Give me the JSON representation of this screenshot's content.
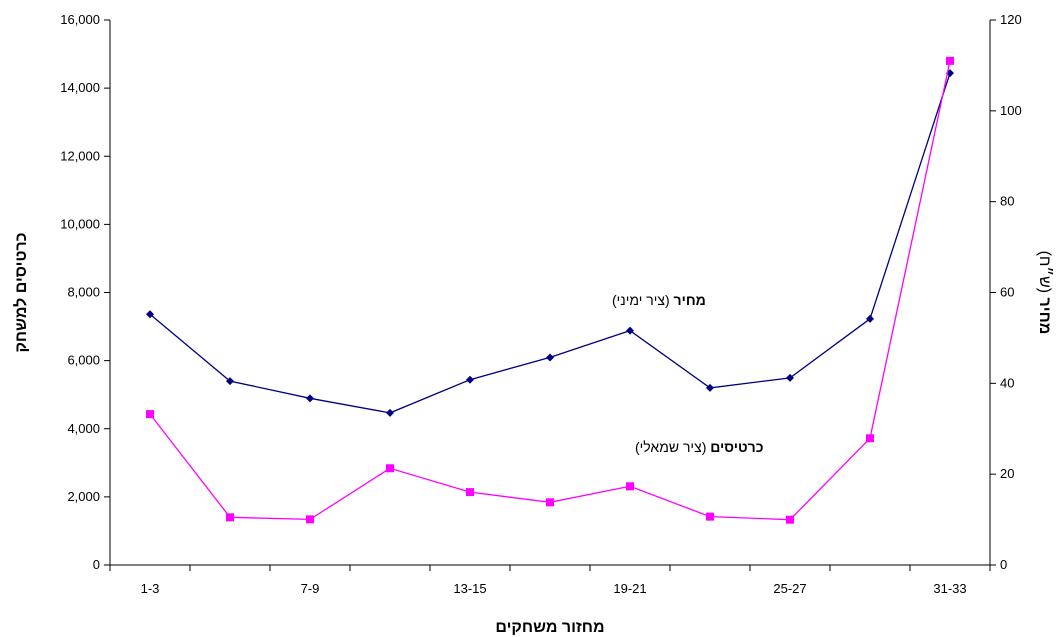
{
  "chart_data": {
    "type": "line",
    "categories": [
      "1-3",
      "4-6",
      "7-9",
      "10-12",
      "13-15",
      "16-18",
      "19-21",
      "22-24",
      "25-27",
      "28-30",
      "31-33"
    ],
    "x_tick_labels": [
      "1-3",
      "7-9",
      "13-15",
      "19-21",
      "25-27",
      "31-33"
    ],
    "xlabel": "מחזור משחקים",
    "ylabel_left": "כרטיסים למשחק",
    "ylabel_right_bold": "מחיר",
    "ylabel_right_rest": " (ש״ח)",
    "ylim_left": [
      0,
      16000
    ],
    "yticks_left": [
      "0",
      "2,000",
      "4,000",
      "6,000",
      "8,000",
      "10,000",
      "12,000",
      "14,000",
      "16,000"
    ],
    "ylim_right": [
      0,
      120
    ],
    "yticks_right": [
      "0",
      "20",
      "40",
      "60",
      "80",
      "100",
      "120"
    ],
    "grid": false,
    "series": [
      {
        "key": "price",
        "axis": "right",
        "color": "#000080",
        "marker": "diamond",
        "annotation_bold": "מחיר",
        "annotation_rest": " (ציר ימיני)",
        "values": [
          55.2,
          40.5,
          36.7,
          33.5,
          40.8,
          45.7,
          51.6,
          39.0,
          41.2,
          54.2,
          108.3
        ]
      },
      {
        "key": "tickets",
        "axis": "left",
        "color": "#ff00ff",
        "marker": "square",
        "annotation_bold": "כרטיסים",
        "annotation_rest": " (ציר שמאלי)",
        "values": [
          4430,
          1400,
          1340,
          2840,
          2140,
          1840,
          2310,
          1420,
          1330,
          3720,
          14800
        ]
      }
    ]
  }
}
